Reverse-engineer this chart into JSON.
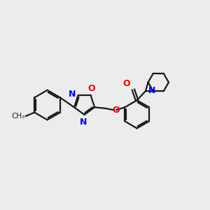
{
  "bg_color": "#ececec",
  "bond_color": "#1a1a1a",
  "N_color": "#0000ee",
  "O_color": "#ee0000",
  "line_width": 1.6,
  "font_size": 9,
  "figsize": [
    3.0,
    3.0
  ],
  "dpi": 100,
  "xlim": [
    0,
    10
  ],
  "ylim": [
    0,
    10
  ]
}
